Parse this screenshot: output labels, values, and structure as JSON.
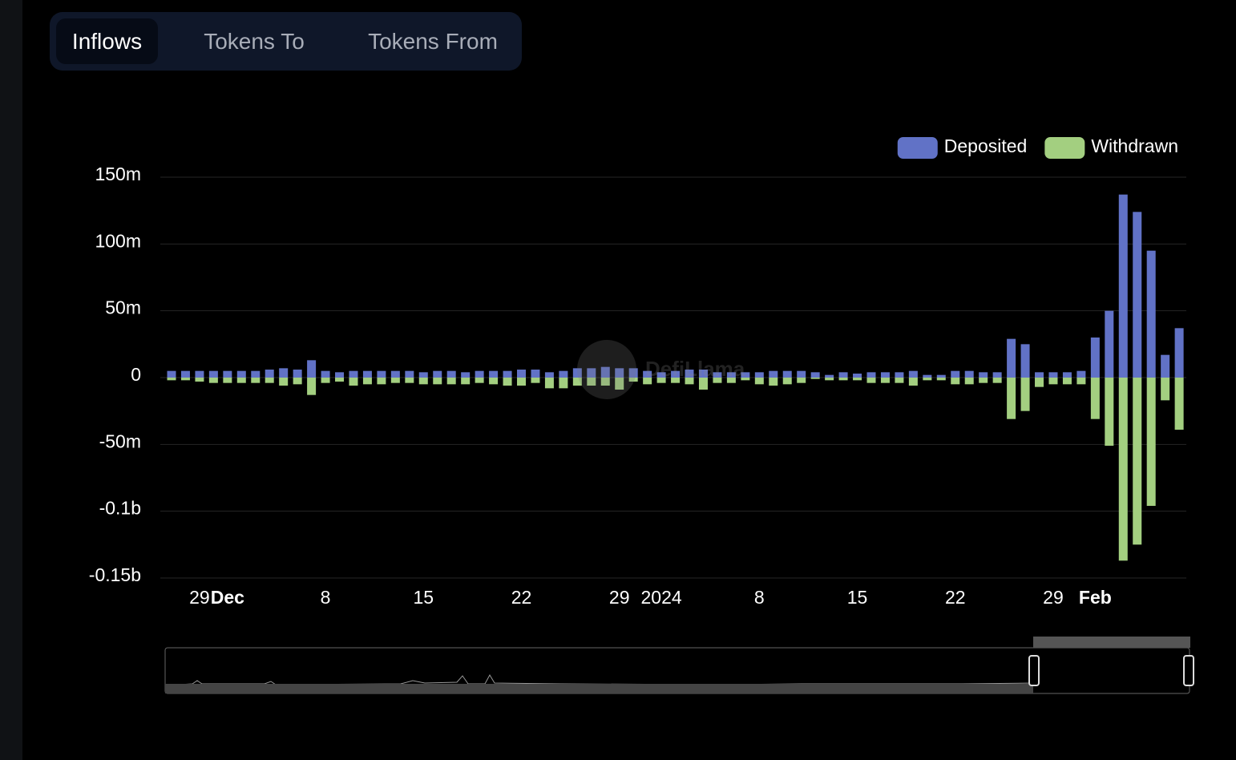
{
  "tabs": [
    "Inflows",
    "Tokens To",
    "Tokens From"
  ],
  "chart_data": {
    "type": "bar",
    "watermark": "DefiLlama",
    "categories": [
      null,
      null,
      "29",
      null,
      "Dec",
      null,
      null,
      null,
      null,
      null,
      null,
      "8",
      null,
      null,
      null,
      null,
      null,
      null,
      "15",
      null,
      null,
      null,
      null,
      null,
      null,
      "22",
      null,
      null,
      null,
      null,
      null,
      null,
      "29",
      null,
      null,
      "2024",
      null,
      null,
      null,
      null,
      null,
      null,
      "8",
      null,
      null,
      null,
      null,
      null,
      null,
      "15",
      null,
      null,
      null,
      null,
      null,
      null,
      "22",
      null,
      null,
      null,
      null,
      null,
      null,
      "29",
      null,
      null,
      "Feb",
      null,
      null,
      null,
      null,
      null,
      null
    ],
    "series": [
      {
        "name": "Deposited",
        "color": "#6172c6",
        "values": [
          5,
          5,
          5,
          5,
          5,
          5,
          5,
          6,
          7,
          6,
          13,
          5,
          4,
          5,
          5,
          5,
          5,
          5,
          4,
          5,
          5,
          4,
          5,
          5,
          5,
          6,
          6,
          4,
          5,
          7,
          7,
          8,
          7,
          7,
          5,
          4,
          5,
          6,
          6,
          4,
          4,
          4,
          4,
          5,
          5,
          5,
          4,
          2,
          4,
          3,
          4,
          4,
          4,
          5,
          2,
          2,
          5,
          5,
          4,
          4,
          29,
          25,
          4,
          4,
          4,
          5,
          30,
          50,
          137,
          124,
          95,
          17,
          37
        ]
      },
      {
        "name": "Withdrawn",
        "color": "#a3cf80",
        "values": [
          -2,
          -2,
          -3,
          -4,
          -4,
          -4,
          -4,
          -4,
          -6,
          -5,
          -13,
          -4,
          -3,
          -6,
          -5,
          -5,
          -4,
          -4,
          -5,
          -5,
          -5,
          -5,
          -4,
          -5,
          -6,
          -6,
          -4,
          -8,
          -8,
          -6,
          -6,
          -6,
          -9,
          -3,
          -5,
          -4,
          -4,
          -5,
          -9,
          -4,
          -4,
          -2,
          -5,
          -6,
          -5,
          -4,
          -1,
          -2,
          -2,
          -2,
          -4,
          -4,
          -4,
          -6,
          -2,
          -2,
          -5,
          -5,
          -4,
          -4,
          -31,
          -25,
          -7,
          -5,
          -5,
          -5,
          -31,
          -51,
          -137,
          -125,
          -96,
          -17,
          -39
        ]
      }
    ],
    "ylim": [
      -150,
      150
    ],
    "yticks": [
      {
        "value": 150,
        "label": "150m"
      },
      {
        "value": 100,
        "label": "100m"
      },
      {
        "value": 50,
        "label": "50m"
      },
      0,
      {
        "value": -50,
        "label": "-50m"
      },
      {
        "value": -100,
        "label": "-0.1b"
      },
      {
        "value": -150,
        "label": "-0.15b"
      }
    ],
    "grid": true,
    "legend": "top-right"
  }
}
